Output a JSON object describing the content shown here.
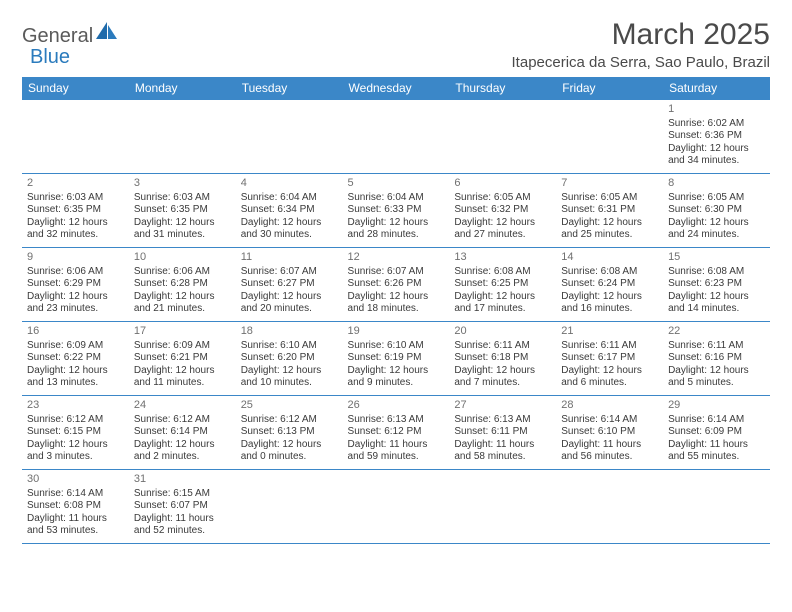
{
  "logo": {
    "part1": "General",
    "part2": "Blue"
  },
  "title": "March 2025",
  "location": "Itapecerica da Serra, Sao Paulo, Brazil",
  "colors": {
    "header_bg": "#3b87c8",
    "header_text": "#ffffff",
    "border": "#3b87c8",
    "text": "#3a3a3a",
    "daynum": "#707070",
    "logo_gray": "#5a5a5a",
    "logo_blue": "#2b7bbd"
  },
  "daynames": [
    "Sunday",
    "Monday",
    "Tuesday",
    "Wednesday",
    "Thursday",
    "Friday",
    "Saturday"
  ],
  "weeks": [
    [
      null,
      null,
      null,
      null,
      null,
      null,
      {
        "n": "1",
        "sr": "6:02 AM",
        "ss": "6:36 PM",
        "dl": "12 hours and 34 minutes."
      }
    ],
    [
      {
        "n": "2",
        "sr": "6:03 AM",
        "ss": "6:35 PM",
        "dl": "12 hours and 32 minutes."
      },
      {
        "n": "3",
        "sr": "6:03 AM",
        "ss": "6:35 PM",
        "dl": "12 hours and 31 minutes."
      },
      {
        "n": "4",
        "sr": "6:04 AM",
        "ss": "6:34 PM",
        "dl": "12 hours and 30 minutes."
      },
      {
        "n": "5",
        "sr": "6:04 AM",
        "ss": "6:33 PM",
        "dl": "12 hours and 28 minutes."
      },
      {
        "n": "6",
        "sr": "6:05 AM",
        "ss": "6:32 PM",
        "dl": "12 hours and 27 minutes."
      },
      {
        "n": "7",
        "sr": "6:05 AM",
        "ss": "6:31 PM",
        "dl": "12 hours and 25 minutes."
      },
      {
        "n": "8",
        "sr": "6:05 AM",
        "ss": "6:30 PM",
        "dl": "12 hours and 24 minutes."
      }
    ],
    [
      {
        "n": "9",
        "sr": "6:06 AM",
        "ss": "6:29 PM",
        "dl": "12 hours and 23 minutes."
      },
      {
        "n": "10",
        "sr": "6:06 AM",
        "ss": "6:28 PM",
        "dl": "12 hours and 21 minutes."
      },
      {
        "n": "11",
        "sr": "6:07 AM",
        "ss": "6:27 PM",
        "dl": "12 hours and 20 minutes."
      },
      {
        "n": "12",
        "sr": "6:07 AM",
        "ss": "6:26 PM",
        "dl": "12 hours and 18 minutes."
      },
      {
        "n": "13",
        "sr": "6:08 AM",
        "ss": "6:25 PM",
        "dl": "12 hours and 17 minutes."
      },
      {
        "n": "14",
        "sr": "6:08 AM",
        "ss": "6:24 PM",
        "dl": "12 hours and 16 minutes."
      },
      {
        "n": "15",
        "sr": "6:08 AM",
        "ss": "6:23 PM",
        "dl": "12 hours and 14 minutes."
      }
    ],
    [
      {
        "n": "16",
        "sr": "6:09 AM",
        "ss": "6:22 PM",
        "dl": "12 hours and 13 minutes."
      },
      {
        "n": "17",
        "sr": "6:09 AM",
        "ss": "6:21 PM",
        "dl": "12 hours and 11 minutes."
      },
      {
        "n": "18",
        "sr": "6:10 AM",
        "ss": "6:20 PM",
        "dl": "12 hours and 10 minutes."
      },
      {
        "n": "19",
        "sr": "6:10 AM",
        "ss": "6:19 PM",
        "dl": "12 hours and 9 minutes."
      },
      {
        "n": "20",
        "sr": "6:11 AM",
        "ss": "6:18 PM",
        "dl": "12 hours and 7 minutes."
      },
      {
        "n": "21",
        "sr": "6:11 AM",
        "ss": "6:17 PM",
        "dl": "12 hours and 6 minutes."
      },
      {
        "n": "22",
        "sr": "6:11 AM",
        "ss": "6:16 PM",
        "dl": "12 hours and 5 minutes."
      }
    ],
    [
      {
        "n": "23",
        "sr": "6:12 AM",
        "ss": "6:15 PM",
        "dl": "12 hours and 3 minutes."
      },
      {
        "n": "24",
        "sr": "6:12 AM",
        "ss": "6:14 PM",
        "dl": "12 hours and 2 minutes."
      },
      {
        "n": "25",
        "sr": "6:12 AM",
        "ss": "6:13 PM",
        "dl": "12 hours and 0 minutes."
      },
      {
        "n": "26",
        "sr": "6:13 AM",
        "ss": "6:12 PM",
        "dl": "11 hours and 59 minutes."
      },
      {
        "n": "27",
        "sr": "6:13 AM",
        "ss": "6:11 PM",
        "dl": "11 hours and 58 minutes."
      },
      {
        "n": "28",
        "sr": "6:14 AM",
        "ss": "6:10 PM",
        "dl": "11 hours and 56 minutes."
      },
      {
        "n": "29",
        "sr": "6:14 AM",
        "ss": "6:09 PM",
        "dl": "11 hours and 55 minutes."
      }
    ],
    [
      {
        "n": "30",
        "sr": "6:14 AM",
        "ss": "6:08 PM",
        "dl": "11 hours and 53 minutes."
      },
      {
        "n": "31",
        "sr": "6:15 AM",
        "ss": "6:07 PM",
        "dl": "11 hours and 52 minutes."
      },
      null,
      null,
      null,
      null,
      null
    ]
  ],
  "labels": {
    "sunrise": "Sunrise:",
    "sunset": "Sunset:",
    "daylight": "Daylight:"
  }
}
